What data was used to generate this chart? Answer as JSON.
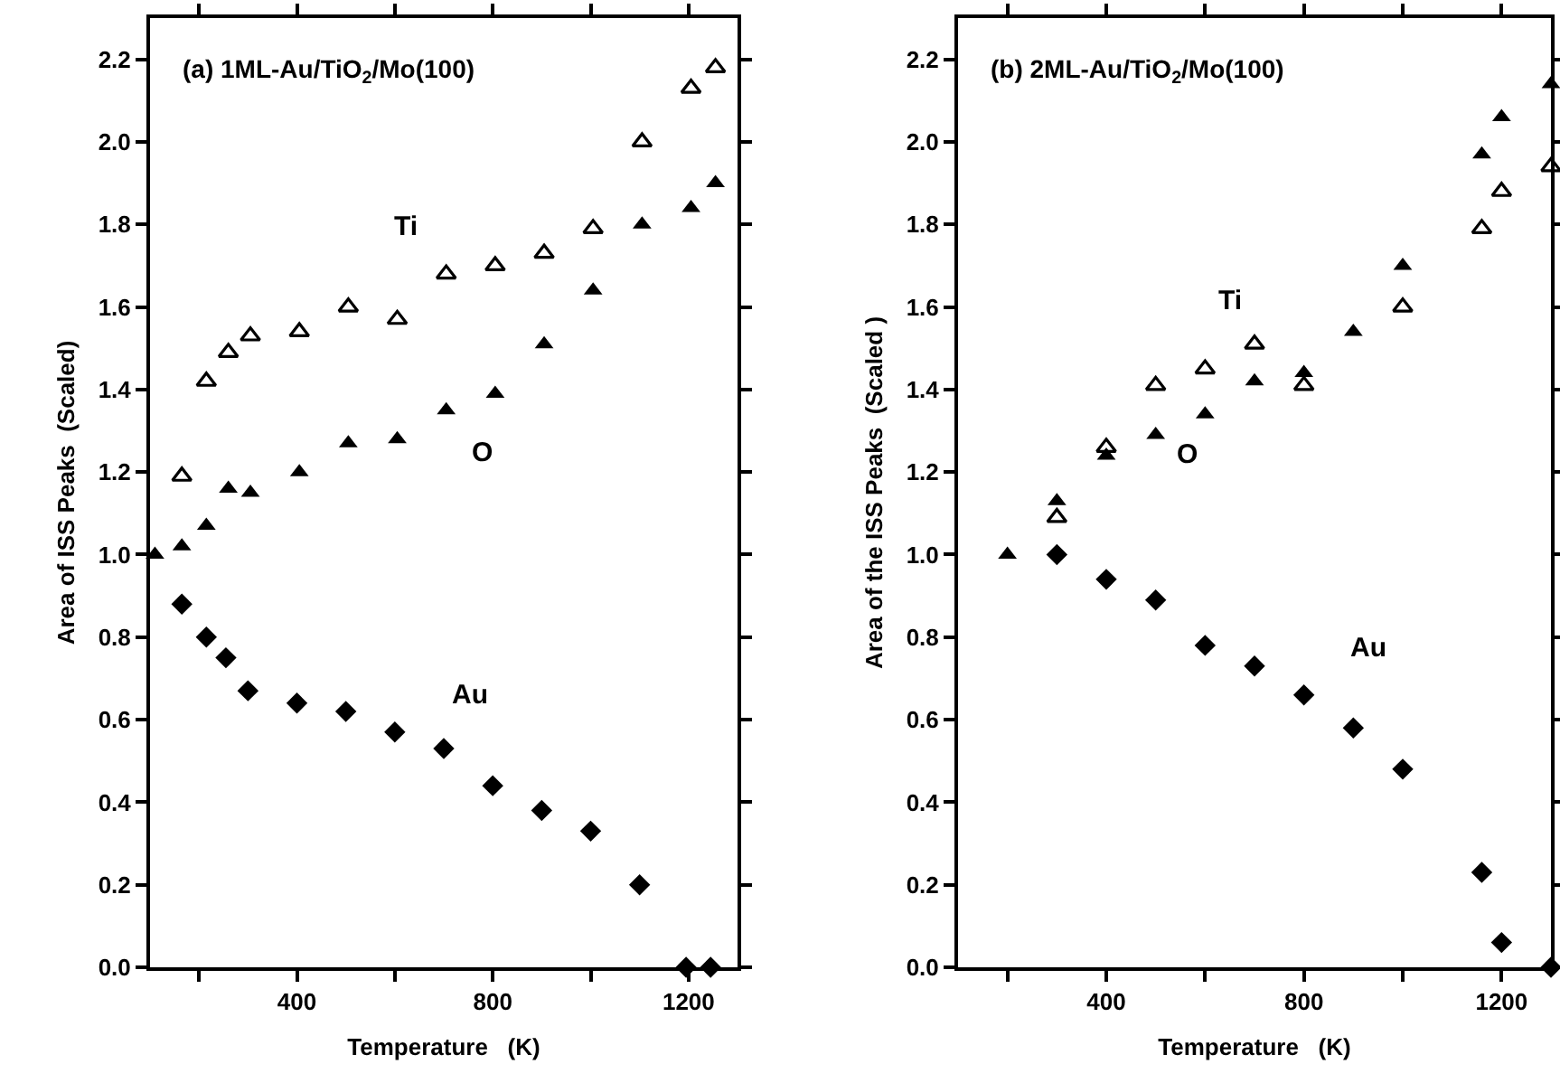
{
  "chart_data": [
    {
      "type": "scatter",
      "title": "(a) 1ML-Au/TiO$_{2}$/Mo(100)",
      "xlabel": "Temperature   (K)",
      "ylabel": "Area of ISS Peaks  (Scaled)",
      "xlim": [
        100,
        1300
      ],
      "ylim": [
        0,
        2.3
      ],
      "xticks": [
        {
          "value": 200,
          "label": null
        },
        400,
        {
          "value": 600,
          "label": null
        },
        800,
        {
          "value": 1000,
          "label": null
        },
        1200
      ],
      "yticks": [
        {
          "value": 0,
          "label": "0.0"
        },
        {
          "value": 0.2,
          "label": "0.2"
        },
        {
          "value": 0.4,
          "label": "0.4"
        },
        {
          "value": 0.6,
          "label": "0.6"
        },
        {
          "value": 0.8,
          "label": "0.8"
        },
        {
          "value": 1,
          "label": "1.0"
        },
        {
          "value": 1.2,
          "label": "1.2"
        },
        {
          "value": 1.4,
          "label": "1.4"
        },
        {
          "value": 1.6,
          "label": "1.6"
        },
        {
          "value": 1.8,
          "label": "1.8"
        },
        {
          "value": 2,
          "label": "2.0"
        },
        {
          "value": 2.2,
          "label": "2.2"
        }
      ],
      "grid": false,
      "legend": false,
      "series": [
        {
          "name": "Ti",
          "color": "#000000",
          "marker": "triangle-open",
          "x": [
            165,
            215,
            260,
            305,
            405,
            505,
            605,
            705,
            805,
            905,
            1005,
            1105,
            1205,
            1255
          ],
          "values": [
            1.19,
            1.42,
            1.49,
            1.53,
            1.54,
            1.6,
            1.57,
            1.68,
            1.7,
            1.73,
            1.79,
            2.0,
            2.13,
            2.18
          ]
        },
        {
          "name": "O",
          "color": "#000000",
          "marker": "triangle",
          "x": [
            110,
            165,
            215,
            260,
            305,
            405,
            505,
            605,
            705,
            805,
            905,
            1005,
            1105,
            1205,
            1255
          ],
          "values": [
            1.0,
            1.02,
            1.07,
            1.16,
            1.15,
            1.2,
            1.27,
            1.28,
            1.35,
            1.39,
            1.51,
            1.64,
            1.8,
            1.84,
            1.9
          ]
        },
        {
          "name": "Au",
          "color": "#000000",
          "marker": "diamond",
          "x": [
            165,
            215,
            255,
            300,
            400,
            500,
            600,
            700,
            800,
            900,
            1000,
            1100,
            1195,
            1245
          ],
          "values": [
            0.88,
            0.8,
            0.75,
            0.67,
            0.64,
            0.62,
            0.57,
            0.53,
            0.44,
            0.38,
            0.33,
            0.2,
            0,
            0
          ]
        }
      ]
    },
    {
      "type": "scatter",
      "title": "(b) 2ML-Au/TiO$_{2}$/Mo(100)",
      "xlabel": "Temperature   (K)",
      "ylabel": "Area of the ISS Peaks  (Scaled )",
      "xlim": [
        100,
        1300
      ],
      "ylim": [
        0,
        2.3
      ],
      "xticks": [
        {
          "value": 200,
          "label": null
        },
        400,
        {
          "value": 600,
          "label": null
        },
        800,
        {
          "value": 1000,
          "label": null
        },
        1200
      ],
      "yticks": [
        {
          "value": 0,
          "label": "0.0"
        },
        {
          "value": 0.2,
          "label": "0.2"
        },
        {
          "value": 0.4,
          "label": "0.4"
        },
        {
          "value": 0.6,
          "label": "0.6"
        },
        {
          "value": 0.8,
          "label": "0.8"
        },
        {
          "value": 1,
          "label": "1.0"
        },
        {
          "value": 1.2,
          "label": "1.2"
        },
        {
          "value": 1.4,
          "label": "1.4"
        },
        {
          "value": 1.6,
          "label": "1.6"
        },
        {
          "value": 1.8,
          "label": "1.8"
        },
        {
          "value": 2,
          "label": "2.0"
        },
        {
          "value": 2.2,
          "label": "2.2"
        }
      ],
      "grid": false,
      "legend": false,
      "series": [
        {
          "name": "Ti",
          "color": "#000000",
          "marker": "triangle-open",
          "x": [
            300,
            400,
            500,
            600,
            700,
            800,
            900,
            1000,
            1160,
            1200,
            1300
          ],
          "values": [
            1.09,
            1.26,
            1.41,
            1.45,
            1.51,
            1.41,
            null,
            1.6,
            1.79,
            1.88,
            1.94
          ]
        },
        {
          "name": "O",
          "color": "#000000",
          "marker": "triangle",
          "x": [
            200,
            300,
            400,
            500,
            600,
            700,
            800,
            900,
            1000,
            1160,
            1200,
            1300
          ],
          "values": [
            1.0,
            1.13,
            1.24,
            1.29,
            1.34,
            1.42,
            1.44,
            1.54,
            1.7,
            1.97,
            2.06,
            2.14
          ]
        },
        {
          "name": "Au",
          "color": "#000000",
          "marker": "diamond",
          "x": [
            300,
            400,
            500,
            600,
            700,
            800,
            900,
            1000,
            1160,
            1200,
            1300
          ],
          "values": [
            1.0,
            0.94,
            0.89,
            0.78,
            0.73,
            0.66,
            0.58,
            0.48,
            0.23,
            0.06,
            0
          ]
        }
      ]
    }
  ]
}
